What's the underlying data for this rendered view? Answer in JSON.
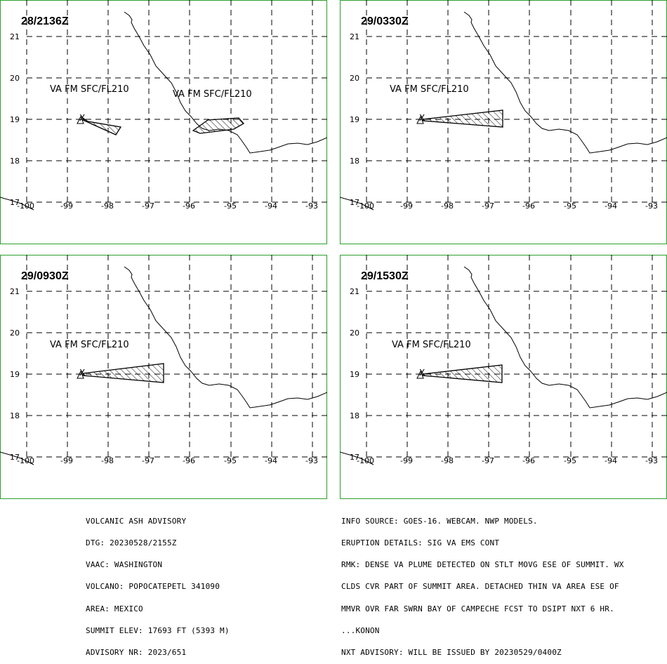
{
  "colors": {
    "frame": "#2ca02c",
    "grid": "#000000",
    "background": "#ffffff",
    "text": "#000000"
  },
  "map": {
    "lat_labels": [
      "21",
      "20",
      "19",
      "18",
      "17"
    ],
    "lon_labels": [
      "-100",
      "-99",
      "-98",
      "-97",
      "-96",
      "-95",
      "-94",
      "-93"
    ],
    "volcano_marker": "X"
  },
  "panels": [
    {
      "time": "28/2136Z",
      "labels": [
        "VA FM SFC/FL210",
        "VA FM SFC/FL210"
      ]
    },
    {
      "time": "29/0330Z",
      "labels": [
        "VA FM SFC/FL210"
      ]
    },
    {
      "time": "29/0930Z",
      "labels": [
        "VA FM SFC/FL210"
      ]
    },
    {
      "time": "29/1530Z",
      "labels": [
        "VA FM SFC/FL210"
      ]
    }
  ],
  "advisory_left": [
    "VOLCANIC ASH ADVISORY",
    "DTG: 20230528/2155Z",
    "VAAC: WASHINGTON",
    "VOLCANO: POPOCATEPETL 341090",
    "AREA: MEXICO",
    "SUMMIT ELEV: 17693 FT (5393 M)",
    "ADVISORY NR: 2023/651"
  ],
  "advisory_right": [
    "INFO SOURCE: GOES-16. WEBCAM. NWP MODELS.",
    "ERUPTION DETAILS: SIG VA EMS CONT",
    "RMK: DENSE VA PLUME DETECTED ON STLT MOVG ESE OF SUMMIT. WX",
    "CLDS CVR PART OF SUMMIT AREA. DETACHED THIN VA AREA ESE OF",
    "MMVR OVR FAR SWRN BAY OF CAMPECHE FCST TO DSIPT NXT 6 HR.",
    "...KONON",
    "NXT ADVISORY: WILL BE ISSUED BY 20230529/0400Z"
  ]
}
